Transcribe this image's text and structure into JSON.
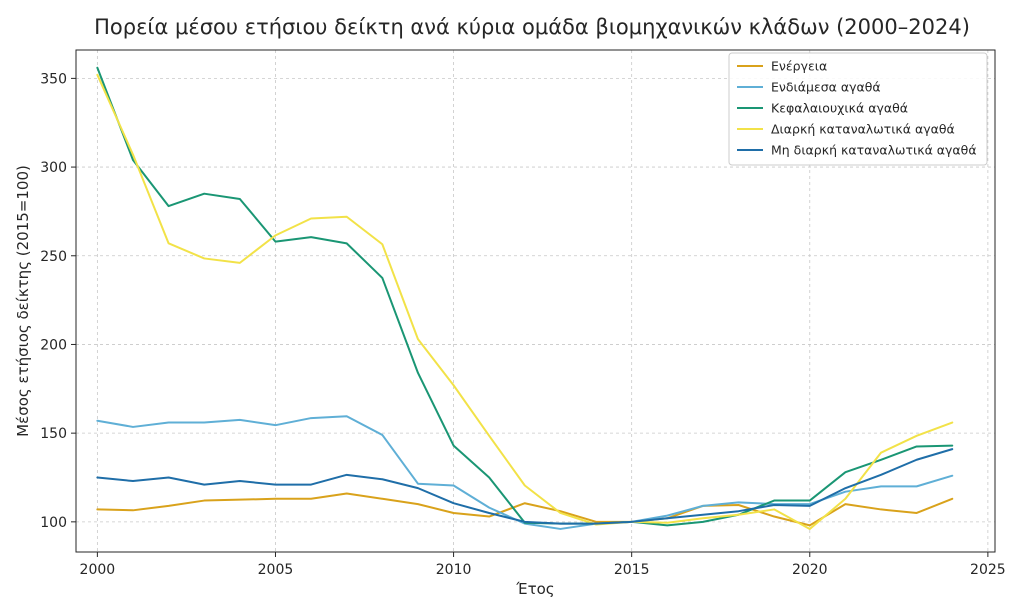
{
  "chart_data": {
    "type": "line",
    "title": "Πορεία μέσου ετήσιου δείκτη ανά κύρια ομάδα βιομηχανικών κλάδων (2000–2024)",
    "xlabel": "Έτος",
    "ylabel": "Μέσος ετήσιος δείκτης (2015=100)",
    "xlim": [
      1999.4,
      2025.2
    ],
    "ylim": [
      83,
      366
    ],
    "xticks": [
      2000,
      2005,
      2010,
      2015,
      2020,
      2025
    ],
    "yticks": [
      100,
      150,
      200,
      250,
      300,
      350
    ],
    "grid": true,
    "legend_position": "top-right",
    "x": [
      2000,
      2001,
      2002,
      2003,
      2004,
      2005,
      2006,
      2007,
      2008,
      2009,
      2010,
      2011,
      2012,
      2013,
      2014,
      2015,
      2016,
      2017,
      2018,
      2019,
      2020,
      2021,
      2022,
      2023,
      2024
    ],
    "series": [
      {
        "name": "Ενέργεια",
        "color": "#d9a21b",
        "values": [
          107,
          106.5,
          109,
          112,
          112.5,
          113,
          113,
          116,
          113,
          110,
          105,
          103,
          110.5,
          106,
          100,
          100,
          102,
          109,
          109.5,
          103,
          98,
          110,
          107,
          105,
          113
        ]
      },
      {
        "name": "Ενδιάμεσα αγαθά",
        "color": "#5fafd6",
        "values": [
          157,
          153.5,
          156,
          156,
          157.5,
          154.5,
          158.5,
          159.5,
          149,
          121.5,
          120.5,
          108,
          99,
          96,
          99,
          100,
          103.5,
          109,
          111,
          110,
          110,
          117,
          120,
          120,
          126
        ]
      },
      {
        "name": "Κεφαλαιουχικά αγαθά",
        "color": "#1a9674",
        "values": [
          356,
          304,
          278,
          285,
          282,
          258,
          260.5,
          257,
          237.5,
          184,
          143,
          125,
          99.5,
          99,
          99,
          100,
          98,
          100,
          104,
          112,
          112,
          128,
          135,
          142.5,
          143
        ]
      },
      {
        "name": "Διαρκή καταναλωτικά αγαθά",
        "color": "#f2e248",
        "values": [
          352,
          307,
          257,
          248.5,
          246,
          261.5,
          271,
          272,
          256.5,
          203,
          177,
          148.5,
          120.5,
          105,
          98.5,
          100,
          99.5,
          102,
          104,
          107,
          96,
          113,
          139,
          148.5,
          156
        ]
      },
      {
        "name": "Μη διαρκή καταναλωτικά αγαθά",
        "color": "#1f6ea8",
        "values": [
          125,
          123,
          125,
          121,
          123,
          121,
          121,
          126.5,
          124,
          119,
          110.5,
          105,
          100,
          99,
          99,
          100,
          102,
          104,
          106,
          109.5,
          109,
          119,
          126.5,
          135,
          141
        ]
      }
    ]
  }
}
